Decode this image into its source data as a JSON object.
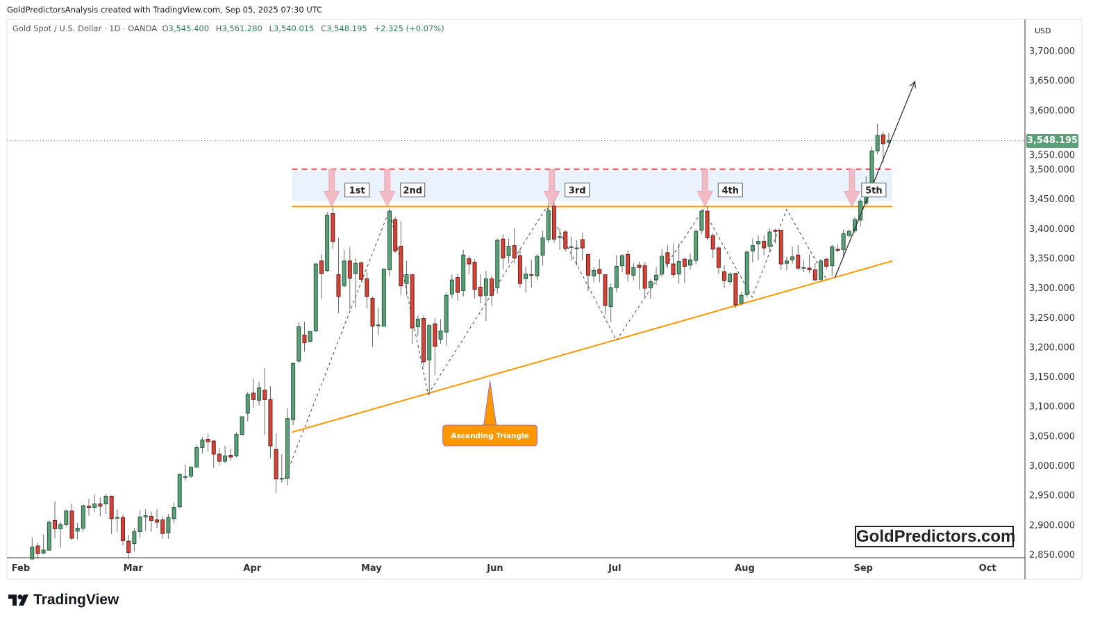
{
  "header": {
    "credit": "GoldPredictorsAnalysis created with TradingView.com, Sep 05, 2025 07:30 UTC",
    "symbol": "Gold Spot / U.S. Dollar · 1D · OANDA",
    "o_label": "O",
    "o": "3,545.400",
    "h_label": "H",
    "h": "3,561.280",
    "l_label": "L",
    "l": "3,540.015",
    "c_label": "C",
    "c": "3,548.195",
    "change": "+2.325 (+0.07%)"
  },
  "axis": {
    "currency": "USD",
    "last_price": "3,548.195",
    "last_price_color": "#5b9e77"
  },
  "watermark": "GoldPredictors.com",
  "brand": "TradingView",
  "chart_data": {
    "type": "candlestick",
    "title": "Gold Spot / U.S. Dollar · 1D · OANDA",
    "ylim": [
      2850,
      3700
    ],
    "yticks": [
      3700,
      3650,
      3600,
      3550,
      3500,
      3450,
      3400,
      3350,
      3300,
      3250,
      3200,
      3150,
      3100,
      3050,
      3000,
      2950,
      2900,
      2850
    ],
    "ytick_labels": [
      "3,700.000",
      "3,650.000",
      "3,600.000",
      "3,550.000",
      "3,500.000",
      "3,450.000",
      "3,400.000",
      "3,350.000",
      "3,300.000",
      "3,250.000",
      "3,200.000",
      "3,150.000",
      "3,100.000",
      "3,050.000",
      "3,000.000",
      "2,950.000",
      "2,900.000",
      "2,850.000"
    ],
    "xticks": [
      {
        "label": "Feb",
        "bar": -2
      },
      {
        "label": "Mar",
        "bar": 17.8
      },
      {
        "label": "Apr",
        "bar": 38.8
      },
      {
        "label": "May",
        "bar": 59.8
      },
      {
        "label": "Jun",
        "bar": 81.6
      },
      {
        "label": "Jul",
        "bar": 102.7
      },
      {
        "label": "Aug",
        "bar": 125.6
      },
      {
        "label": "Sep",
        "bar": 146.5
      },
      {
        "label": "Oct",
        "bar": 168.4
      }
    ],
    "colors": {
      "up": "#5f9e78",
      "up_border": "#1f5a3a",
      "down": "#d2453a",
      "down_border": "#6e1d16",
      "wick": "#666666"
    },
    "ohlc": [
      [
        2842,
        2878,
        2840,
        2862
      ],
      [
        2864,
        2869,
        2842,
        2851
      ],
      [
        2852,
        2883,
        2850,
        2857
      ],
      [
        2857,
        2907,
        2856,
        2904
      ],
      [
        2907,
        2939,
        2877,
        2893
      ],
      [
        2893,
        2905,
        2861,
        2900
      ],
      [
        2900,
        2925,
        2897,
        2923
      ],
      [
        2923,
        2935,
        2874,
        2877
      ],
      [
        2889,
        2903,
        2875,
        2894
      ],
      [
        2894,
        2934,
        2888,
        2932
      ],
      [
        2931,
        2943,
        2915,
        2929
      ],
      [
        2929,
        2951,
        2921,
        2935
      ],
      [
        2935,
        2946,
        2914,
        2931
      ],
      [
        2935,
        2952,
        2918,
        2948
      ],
      [
        2948,
        2949,
        2884,
        2910
      ],
      [
        2911,
        2926,
        2887,
        2912
      ],
      [
        2912,
        2917,
        2865,
        2873
      ],
      [
        2872,
        2882,
        2842,
        2853
      ],
      [
        2868,
        2894,
        2855,
        2888
      ],
      [
        2888,
        2924,
        2878,
        2913
      ],
      [
        2913,
        2926,
        2890,
        2915
      ],
      [
        2914,
        2922,
        2888,
        2907
      ],
      [
        2908,
        2926,
        2894,
        2904
      ],
      [
        2908,
        2914,
        2876,
        2885
      ],
      [
        2886,
        2918,
        2876,
        2912
      ],
      [
        2910,
        2937,
        2902,
        2929
      ],
      [
        2930,
        2986,
        2928,
        2985
      ],
      [
        2981,
        3001,
        2974,
        2981
      ],
      [
        2982,
        2998,
        2979,
        2997
      ],
      [
        2997,
        3035,
        2996,
        3030
      ],
      [
        3030,
        3048,
        3020,
        3043
      ],
      [
        3044,
        3054,
        3023,
        3040
      ],
      [
        3041,
        3043,
        2996,
        3019
      ],
      [
        3019,
        3029,
        3000,
        3007
      ],
      [
        3007,
        3033,
        3004,
        3016
      ],
      [
        3017,
        3028,
        3008,
        3014
      ],
      [
        3016,
        3056,
        3014,
        3052
      ],
      [
        3052,
        3082,
        3051,
        3082
      ],
      [
        3088,
        3124,
        3074,
        3120
      ],
      [
        3122,
        3146,
        3098,
        3111
      ],
      [
        3110,
        3141,
        3101,
        3131
      ],
      [
        3127,
        3164,
        3051,
        3111
      ],
      [
        3111,
        3134,
        3012,
        3033
      ],
      [
        3027,
        3054,
        2953,
        2977
      ],
      [
        2978,
        3019,
        2971,
        2978
      ],
      [
        2978,
        3096,
        2966,
        3079
      ],
      [
        3077,
        3174,
        3068,
        3172
      ],
      [
        3176,
        3242,
        3173,
        3234
      ],
      [
        3220,
        3242,
        3192,
        3207
      ],
      [
        3209,
        3227,
        3208,
        3226
      ],
      [
        3227,
        3341,
        3225,
        3340
      ],
      [
        3345,
        3356,
        3281,
        3324
      ],
      [
        3329,
        3428,
        3326,
        3422
      ],
      [
        3425,
        3438,
        3365,
        3378
      ],
      [
        3322,
        3384,
        3257,
        3285
      ],
      [
        3303,
        3364,
        3300,
        3345
      ],
      [
        3345,
        3368,
        3263,
        3316
      ],
      [
        3324,
        3350,
        3266,
        3341
      ],
      [
        3342,
        3344,
        3312,
        3314
      ],
      [
        3315,
        3326,
        3265,
        3285
      ],
      [
        3282,
        3285,
        3200,
        3235
      ],
      [
        3237,
        3266,
        3220,
        3237
      ],
      [
        3235,
        3333,
        3234,
        3331
      ],
      [
        3330,
        3433,
        3320,
        3429
      ],
      [
        3415,
        3420,
        3359,
        3362
      ],
      [
        3370,
        3412,
        3287,
        3303
      ],
      [
        3307,
        3345,
        3287,
        3322
      ],
      [
        3322,
        3322,
        3205,
        3232
      ],
      [
        3234,
        3253,
        3219,
        3247
      ],
      [
        3248,
        3253,
        3166,
        3175
      ],
      [
        3178,
        3238,
        3119,
        3236
      ],
      [
        3239,
        3249,
        3152,
        3201
      ],
      [
        3213,
        3247,
        3205,
        3227
      ],
      [
        3225,
        3292,
        3202,
        3287
      ],
      [
        3289,
        3322,
        3282,
        3313
      ],
      [
        3317,
        3324,
        3278,
        3292
      ],
      [
        3295,
        3364,
        3285,
        3355
      ],
      [
        3349,
        3354,
        3322,
        3340
      ],
      [
        3343,
        3348,
        3282,
        3297
      ],
      [
        3301,
        3323,
        3274,
        3286
      ],
      [
        3287,
        3328,
        3244,
        3315
      ],
      [
        3315,
        3320,
        3269,
        3287
      ],
      [
        3300,
        3383,
        3290,
        3380
      ],
      [
        3382,
        3390,
        3331,
        3350
      ],
      [
        3354,
        3383,
        3341,
        3370
      ],
      [
        3371,
        3401,
        3341,
        3350
      ],
      [
        3354,
        3366,
        3300,
        3307
      ],
      [
        3315,
        3335,
        3292,
        3323
      ],
      [
        3322,
        3347,
        3300,
        3321
      ],
      [
        3320,
        3357,
        3313,
        3353
      ],
      [
        3355,
        3396,
        3337,
        3384
      ],
      [
        3381,
        3444,
        3376,
        3430
      ],
      [
        3438,
        3449,
        3376,
        3382
      ],
      [
        3386,
        3400,
        3364,
        3386
      ],
      [
        3394,
        3397,
        3361,
        3366
      ],
      [
        3369,
        3386,
        3346,
        3369
      ],
      [
        3367,
        3380,
        3337,
        3367
      ],
      [
        3381,
        3392,
        3346,
        3367
      ],
      [
        3356,
        3356,
        3294,
        3321
      ],
      [
        3320,
        3335,
        3309,
        3329
      ],
      [
        3331,
        3348,
        3309,
        3324
      ],
      [
        3322,
        3322,
        3254,
        3270
      ],
      [
        3268,
        3307,
        3242,
        3300
      ],
      [
        3300,
        3355,
        3292,
        3336
      ],
      [
        3337,
        3357,
        3326,
        3354
      ],
      [
        3356,
        3363,
        3310,
        3323
      ],
      [
        3321,
        3341,
        3312,
        3334
      ],
      [
        3338,
        3344,
        3297,
        3334
      ],
      [
        3337,
        3343,
        3285,
        3299
      ],
      [
        3300,
        3314,
        3281,
        3310
      ],
      [
        3313,
        3334,
        3305,
        3321
      ],
      [
        3323,
        3365,
        3318,
        3353
      ],
      [
        3359,
        3372,
        3333,
        3341
      ],
      [
        3340,
        3374,
        3317,
        3322
      ],
      [
        3323,
        3375,
        3307,
        3344
      ],
      [
        3348,
        3350,
        3308,
        3336
      ],
      [
        3338,
        3358,
        3330,
        3347
      ],
      [
        3346,
        3399,
        3340,
        3395
      ],
      [
        3397,
        3432,
        3390,
        3429
      ],
      [
        3429,
        3438,
        3380,
        3384
      ],
      [
        3388,
        3392,
        3350,
        3365
      ],
      [
        3367,
        3370,
        3323,
        3334
      ],
      [
        3327,
        3338,
        3300,
        3312
      ],
      [
        3310,
        3326,
        3305,
        3323
      ],
      [
        3324,
        3324,
        3266,
        3271
      ],
      [
        3274,
        3293,
        3270,
        3287
      ],
      [
        3288,
        3363,
        3284,
        3360
      ],
      [
        3362,
        3383,
        3343,
        3371
      ],
      [
        3374,
        3388,
        3347,
        3378
      ],
      [
        3378,
        3388,
        3355,
        3367
      ],
      [
        3370,
        3400,
        3360,
        3394
      ],
      [
        3397,
        3400,
        3375,
        3395
      ],
      [
        3397,
        3397,
        3330,
        3340
      ],
      [
        3341,
        3352,
        3329,
        3345
      ],
      [
        3347,
        3369,
        3340,
        3352
      ],
      [
        3355,
        3372,
        3329,
        3333
      ],
      [
        3334,
        3346,
        3326,
        3334
      ],
      [
        3333,
        3356,
        3325,
        3330
      ],
      [
        3330,
        3342,
        3312,
        3313
      ],
      [
        3314,
        3348,
        3310,
        3345
      ],
      [
        3348,
        3350,
        3330,
        3336
      ],
      [
        3337,
        3373,
        3320,
        3369
      ],
      [
        3365,
        3373,
        3360,
        3363
      ],
      [
        3364,
        3398,
        3350,
        3391
      ],
      [
        3388,
        3398,
        3385,
        3395
      ],
      [
        3396,
        3420,
        3392,
        3415
      ],
      [
        3414,
        3450,
        3403,
        3446
      ],
      [
        3443,
        3488,
        3440,
        3475
      ],
      [
        3473,
        3538,
        3470,
        3531
      ],
      [
        3531,
        3577,
        3525,
        3557
      ],
      [
        3558,
        3563,
        3511,
        3543
      ],
      [
        3545.4,
        3561.28,
        3540.015,
        3548.195
      ]
    ],
    "last_price": 3548.195,
    "annotations": {
      "resistance": {
        "price": 3437,
        "from_bar": 45.8,
        "to_bar": 151.6,
        "color": "#ff9800"
      },
      "upper_dashed": {
        "price": 3500,
        "from_bar": 45.8,
        "to_bar": 151.6,
        "color": "#f23645"
      },
      "zone": {
        "top": 3497,
        "bottom": 3446,
        "color": "#eaf3fd"
      },
      "support_trendline": {
        "points": [
          [
            45.8,
            3056
          ],
          [
            151.6,
            3345
          ]
        ],
        "color": "#ff9800"
      },
      "zigzag": [
        [
          44.5,
          2977
        ],
        [
          63.0,
          3432
        ],
        [
          69.8,
          3120
        ],
        [
          90.7,
          3436
        ],
        [
          103.0,
          3211
        ],
        [
          118.3,
          3432
        ],
        [
          126.9,
          3284
        ],
        [
          133.0,
          3432
        ],
        [
          140.0,
          3314
        ]
      ],
      "breakout_arrow": [
        [
          141.5,
          3317
        ],
        [
          155.6,
          3648
        ]
      ],
      "touches": [
        {
          "label": "1st",
          "bar": 52.8
        },
        {
          "label": "2nd",
          "bar": 62.6
        },
        {
          "label": "3rd",
          "bar": 91.6
        },
        {
          "label": "4th",
          "bar": 118.6
        },
        {
          "label": "5th",
          "bar": 144.5
        }
      ],
      "callout": {
        "text": "Ascending Triangle",
        "bar": 80.7,
        "price": 3143,
        "color": "#ff9800"
      }
    }
  }
}
